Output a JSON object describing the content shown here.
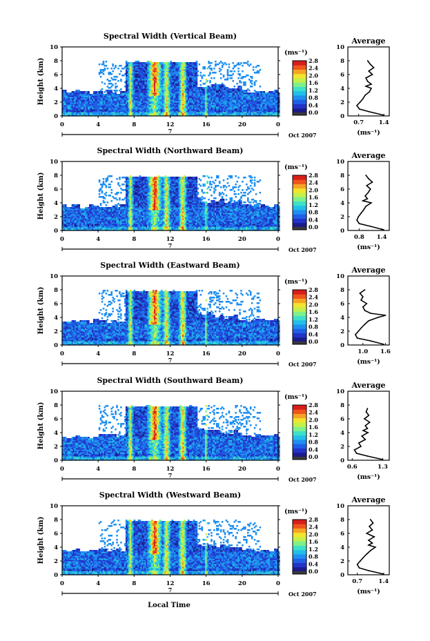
{
  "figure": {
    "xlabel": "Local Time",
    "date_label": "Oct 2007",
    "day_label": "7",
    "cbar_unit": "(ms⁻¹)",
    "avg_title": "Average",
    "avg_xlabel": "(ms⁻¹)",
    "ylabel": "Height (km)"
  },
  "chart_data": [
    {
      "type": "heatmap",
      "title": "Spectral Width (Vertical Beam)",
      "xlabel": "Local Time",
      "ylabel": "Height (km)",
      "xticks": [
        "0",
        "4",
        "8",
        "12",
        "16",
        "20",
        "0"
      ],
      "xlim": [
        0,
        24
      ],
      "yticks": [
        "0",
        "2",
        "4",
        "6",
        "8",
        "10"
      ],
      "ylim": [
        0,
        10
      ],
      "colorbar": {
        "unit": "(ms⁻¹)",
        "ticks": [
          "0.0",
          "0.4",
          "0.8",
          "1.2",
          "1.6",
          "2.0",
          "2.4",
          "2.8"
        ],
        "range": [
          0,
          2.8
        ]
      },
      "date_label": "Oct 2007",
      "day_label": "7",
      "profile": {
        "title": "Average",
        "xlabel": "(ms⁻¹)",
        "xticks": [
          "0.7",
          "1.4"
        ],
        "xlim": [
          0.4,
          1.55
        ],
        "yticks": [
          "0",
          "2",
          "4",
          "6",
          "8",
          "10"
        ],
        "ylim": [
          0,
          10
        ],
        "height_km": [
          0.1,
          0.6,
          1.0,
          1.5,
          2.0,
          2.5,
          3.0,
          3.5,
          4.0,
          4.3,
          4.6,
          5.0,
          5.5,
          6.0,
          6.5,
          7.0,
          7.5,
          8.0
        ],
        "value": [
          1.4,
          1.0,
          0.72,
          0.65,
          0.74,
          0.82,
          0.88,
          1.0,
          1.05,
          0.9,
          1.05,
          0.95,
          0.9,
          1.08,
          0.98,
          1.12,
          1.02,
          0.95
        ]
      }
    },
    {
      "type": "heatmap",
      "title": "Spectral Width (Northward Beam)",
      "xlabel": "Local Time",
      "ylabel": "Height (km)",
      "xticks": [
        "0",
        "4",
        "8",
        "12",
        "16",
        "20",
        "0"
      ],
      "xlim": [
        0,
        24
      ],
      "yticks": [
        "0",
        "2",
        "4",
        "6",
        "8",
        "10"
      ],
      "ylim": [
        0,
        10
      ],
      "colorbar": {
        "unit": "(ms⁻¹)",
        "ticks": [
          "0.0",
          "0.4",
          "0.8",
          "1.2",
          "1.6",
          "2.0",
          "2.4",
          "2.8"
        ],
        "range": [
          0,
          2.8
        ]
      },
      "date_label": "Oct 2007",
      "day_label": "7",
      "profile": {
        "title": "Average",
        "xlabel": "(ms⁻¹)",
        "xticks": [
          "0.8",
          "1.4"
        ],
        "xlim": [
          0.5,
          1.6
        ],
        "yticks": [
          "0",
          "2",
          "4",
          "6",
          "8",
          "10"
        ],
        "ylim": [
          0,
          10
        ],
        "height_km": [
          0.1,
          0.6,
          1.0,
          1.5,
          2.0,
          2.5,
          3.0,
          3.5,
          4.0,
          4.3,
          4.6,
          5.0,
          5.5,
          6.0,
          6.5,
          7.0,
          7.5,
          8.0
        ],
        "value": [
          1.45,
          1.1,
          0.8,
          0.74,
          0.78,
          0.85,
          0.92,
          0.98,
          1.12,
          0.9,
          1.02,
          0.96,
          1.04,
          1.1,
          1.0,
          1.15,
          1.05,
          0.98
        ]
      }
    },
    {
      "type": "heatmap",
      "title": "Spectral Width (Eastward Beam)",
      "xlabel": "Local Time",
      "ylabel": "Height (km)",
      "xticks": [
        "0",
        "4",
        "8",
        "12",
        "16",
        "20",
        "0"
      ],
      "xlim": [
        0,
        24
      ],
      "yticks": [
        "0",
        "2",
        "4",
        "6",
        "8",
        "10"
      ],
      "ylim": [
        0,
        10
      ],
      "colorbar": {
        "unit": "(ms⁻¹)",
        "ticks": [
          "0.0",
          "0.4",
          "0.8",
          "1.2",
          "1.6",
          "2.0",
          "2.4",
          "2.8"
        ],
        "range": [
          0,
          2.8
        ]
      },
      "date_label": "Oct 2007",
      "day_label": "7",
      "profile": {
        "title": "Average",
        "xlabel": "(ms⁻¹)",
        "xticks": [
          "1.0",
          "1.6"
        ],
        "xlim": [
          0.6,
          1.7
        ],
        "yticks": [
          "0",
          "2",
          "4",
          "6",
          "8",
          "10"
        ],
        "ylim": [
          0,
          10
        ],
        "height_km": [
          0.1,
          0.6,
          1.0,
          1.5,
          2.0,
          2.5,
          3.0,
          3.5,
          4.0,
          4.3,
          4.6,
          5.0,
          5.5,
          6.0,
          6.5,
          7.0,
          7.5,
          8.0
        ],
        "value": [
          1.55,
          1.2,
          0.85,
          0.8,
          0.88,
          0.96,
          1.05,
          1.15,
          1.4,
          1.6,
          1.2,
          1.05,
          1.0,
          1.1,
          0.95,
          1.0,
          0.92,
          1.05
        ]
      }
    },
    {
      "type": "heatmap",
      "title": "Spectral Width (Southward Beam)",
      "xlabel": "Local Time",
      "ylabel": "Height (km)",
      "xticks": [
        "0",
        "4",
        "8",
        "12",
        "16",
        "20",
        "0"
      ],
      "xlim": [
        0,
        24
      ],
      "yticks": [
        "0",
        "2",
        "4",
        "6",
        "8",
        "10"
      ],
      "ylim": [
        0,
        10
      ],
      "colorbar": {
        "unit": "(ms⁻¹)",
        "ticks": [
          "0.0",
          "0.4",
          "0.8",
          "1.2",
          "1.6",
          "2.0",
          "2.4",
          "2.8"
        ],
        "range": [
          0,
          2.8
        ]
      },
      "date_label": "Oct 2007",
      "day_label": "7",
      "profile": {
        "title": "Average",
        "xlabel": "(ms⁻¹)",
        "xticks": [
          "0.6",
          "1.3"
        ],
        "xlim": [
          0.5,
          1.45
        ],
        "yticks": [
          "0",
          "2",
          "4",
          "6",
          "8",
          "10"
        ],
        "ylim": [
          0,
          10
        ],
        "height_km": [
          0.1,
          0.6,
          1.0,
          1.5,
          2.0,
          2.5,
          3.0,
          3.5,
          4.0,
          4.3,
          4.6,
          5.0,
          5.5,
          6.0,
          6.5,
          7.0,
          7.5
        ],
        "value": [
          1.3,
          0.95,
          0.7,
          0.65,
          0.8,
          0.75,
          0.9,
          0.82,
          0.96,
          0.85,
          0.95,
          0.9,
          1.0,
          0.88,
          0.98,
          0.92,
          0.95
        ]
      }
    },
    {
      "type": "heatmap",
      "title": "Spectral Width (Westward Beam)",
      "xlabel": "Local Time",
      "ylabel": "Height (km)",
      "xticks": [
        "0",
        "4",
        "8",
        "12",
        "16",
        "20",
        "0"
      ],
      "xlim": [
        0,
        24
      ],
      "yticks": [
        "0",
        "2",
        "4",
        "6",
        "8",
        "10"
      ],
      "ylim": [
        0,
        10
      ],
      "colorbar": {
        "unit": "(ms⁻¹)",
        "ticks": [
          "0.0",
          "0.4",
          "0.8",
          "1.2",
          "1.6",
          "2.0",
          "2.4",
          "2.8"
        ],
        "range": [
          0,
          2.8
        ]
      },
      "date_label": "Oct 2007",
      "day_label": "7",
      "profile": {
        "title": "Average",
        "xlabel": "(ms⁻¹)",
        "xticks": [
          "0.7",
          "1.4"
        ],
        "xlim": [
          0.45,
          1.55
        ],
        "yticks": [
          "0",
          "2",
          "4",
          "6",
          "8",
          "10"
        ],
        "ylim": [
          0,
          10
        ],
        "height_km": [
          0.1,
          0.6,
          1.0,
          1.5,
          2.0,
          2.5,
          3.0,
          3.5,
          4.0,
          4.3,
          4.6,
          5.0,
          5.5,
          6.0,
          6.5,
          7.0,
          7.5,
          8.0
        ],
        "value": [
          1.4,
          1.0,
          0.75,
          0.7,
          0.78,
          0.86,
          0.95,
          1.05,
          1.18,
          1.0,
          1.1,
          1.0,
          1.15,
          0.95,
          1.1,
          1.02,
          1.12,
          1.05
        ]
      }
    }
  ]
}
